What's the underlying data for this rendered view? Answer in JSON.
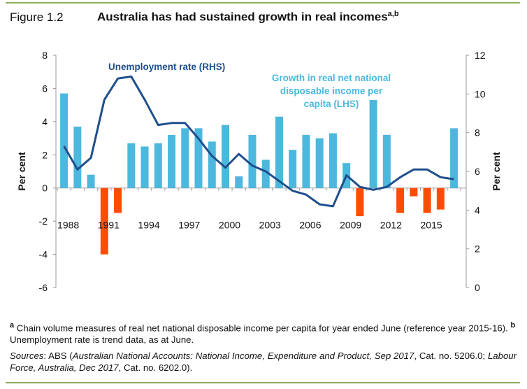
{
  "figure": {
    "number": "Figure 1.2",
    "title": "Australia has had sustained growth in real incomes",
    "title_superscript": "a,b"
  },
  "colors": {
    "positive_bar": "#4cb8de",
    "negative_bar": "#ff4c05",
    "line": "#1f4e8c",
    "rule": "#8fac5e"
  },
  "chart_data": {
    "type": "bar+line",
    "title": "Australia has had sustained growth in real incomes",
    "categories": [
      "1988",
      "1989",
      "1990",
      "1991",
      "1992",
      "1993",
      "1994",
      "1995",
      "1996",
      "1997",
      "1998",
      "1999",
      "2000",
      "2001",
      "2002",
      "2003",
      "2004",
      "2005",
      "2006",
      "2007",
      "2008",
      "2009",
      "2010",
      "2011",
      "2012",
      "2013",
      "2014",
      "2015",
      "2016",
      "2017"
    ],
    "x_tick_labels": [
      "1988",
      "1991",
      "1994",
      "1997",
      "2000",
      "2003",
      "2006",
      "2009",
      "2012",
      "2015"
    ],
    "ylabel_left": "Per cent",
    "ylabel_right": "Per cent",
    "ylim_left": [
      -6,
      8
    ],
    "yticks_left": [
      "8",
      "6",
      "4",
      "2",
      "0",
      "-2",
      "-4",
      "-6"
    ],
    "ylim_right": [
      0,
      12
    ],
    "yticks_right": [
      "12",
      "10",
      "8",
      "6",
      "4",
      "2",
      "0"
    ],
    "grid": false,
    "series": [
      {
        "name": "Growth in real net national disposable income per capita (LHS)",
        "legend_lines": [
          "Growth in real net national",
          "disposable income per",
          "capita (LHS)"
        ],
        "type": "bar",
        "axis": "left",
        "values": [
          5.7,
          3.7,
          0.8,
          -4.0,
          -1.5,
          2.7,
          2.5,
          2.7,
          3.2,
          3.6,
          3.6,
          2.8,
          3.8,
          0.7,
          3.2,
          1.7,
          4.3,
          2.3,
          3.2,
          3.0,
          3.3,
          1.5,
          -1.7,
          5.3,
          3.2,
          -1.5,
          -0.5,
          -1.5,
          -1.3,
          3.6
        ]
      },
      {
        "name": "Unemployment rate (RHS)",
        "type": "line",
        "axis": "right",
        "values": [
          7.3,
          6.1,
          6.7,
          9.7,
          10.8,
          10.9,
          9.7,
          8.4,
          8.5,
          8.5,
          7.7,
          6.8,
          6.2,
          6.9,
          6.3,
          6.0,
          5.5,
          5.0,
          4.8,
          4.3,
          4.2,
          5.8,
          5.2,
          5.05,
          5.2,
          5.7,
          6.1,
          6.1,
          5.7,
          5.6
        ]
      }
    ]
  },
  "notes": {
    "a_marker": "a",
    "a_text": " Chain volume measures of real net national disposable income per capita for year ended June (reference year 2015-16). ",
    "b_marker": "b",
    "b_text": " Unemployment rate is trend data, as at June.",
    "sources_label": "Sources",
    "sources_1": ": ABS (",
    "sources_2": "Australian National Accounts: National Income, Expenditure and Product, Sep 2017",
    "sources_3": ", Cat. no. 5206.0; ",
    "sources_4": "Labour Force, Australia, Dec 2017",
    "sources_5": ", Cat. no. 6202.0)."
  }
}
